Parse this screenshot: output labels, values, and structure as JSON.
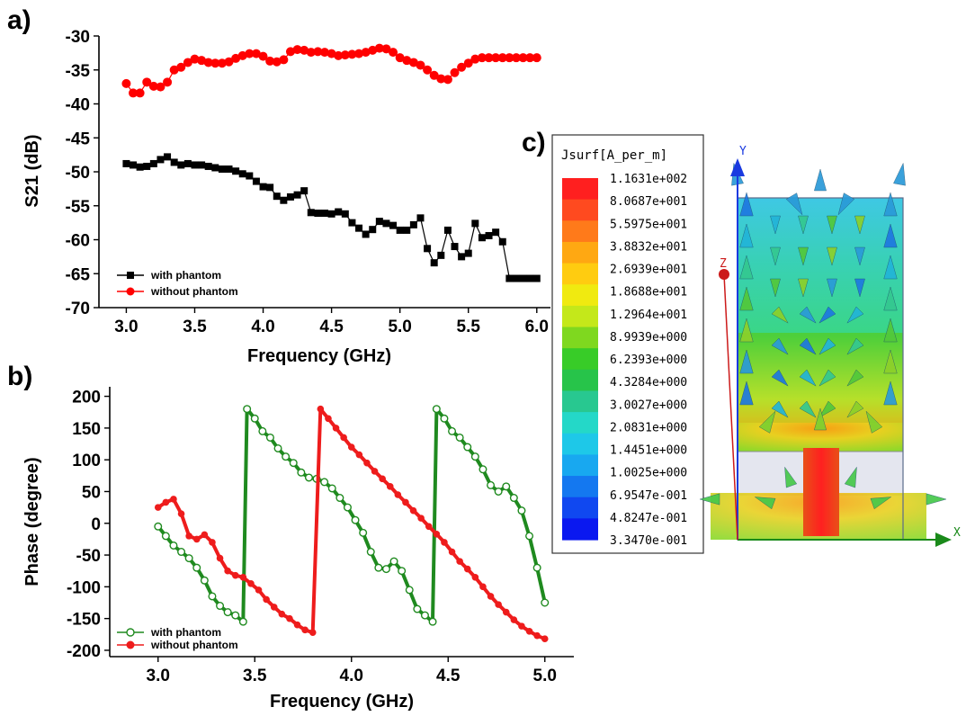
{
  "chart_data": [
    {
      "panel": "a)",
      "type": "line",
      "xlabel": "Frequency (GHz)",
      "ylabel": "S21 (dB)",
      "xlim": [
        2.8,
        6.1
      ],
      "ylim": [
        -70,
        -30
      ],
      "xticks": [
        3.0,
        3.5,
        4.0,
        4.5,
        5.0,
        5.5,
        6.0
      ],
      "xtick_labels": [
        "3.0",
        "3.5",
        "4.0",
        "4.5",
        "5.0",
        "5.5",
        "6.0"
      ],
      "yticks": [
        -70,
        -65,
        -60,
        -55,
        -50,
        -45,
        -40,
        -35,
        -30
      ],
      "ytick_labels": [
        "-70",
        "-65",
        "-60",
        "-55",
        "-50",
        "-45",
        "-40",
        "-35",
        "-30"
      ],
      "legend_position": "bottom-left",
      "series": [
        {
          "name": "with phantom",
          "color": "#000000",
          "marker": "square",
          "x": [
            3.0,
            3.05,
            3.1,
            3.15,
            3.2,
            3.25,
            3.3,
            3.35,
            3.4,
            3.45,
            3.5,
            3.55,
            3.6,
            3.65,
            3.7,
            3.75,
            3.8,
            3.85,
            3.9,
            3.95,
            4.0,
            4.05,
            4.1,
            4.15,
            4.2,
            4.25,
            4.3,
            4.35,
            4.4,
            4.45,
            4.5,
            4.55,
            4.6,
            4.65,
            4.7,
            4.75,
            4.8,
            4.85,
            4.9,
            4.95,
            5.0,
            5.05,
            5.1,
            5.15,
            5.2,
            5.25,
            5.3,
            5.35,
            5.4,
            5.45,
            5.5,
            5.55,
            5.6,
            5.65,
            5.7,
            5.75,
            5.8,
            5.85,
            5.9,
            5.95,
            6.0
          ],
          "y": [
            -48.8,
            -49.0,
            -49.3,
            -49.2,
            -48.8,
            -48.2,
            -47.8,
            -48.6,
            -49.0,
            -48.8,
            -49.0,
            -49.0,
            -49.2,
            -49.4,
            -49.6,
            -49.6,
            -49.9,
            -50.3,
            -50.6,
            -51.4,
            -52.2,
            -52.3,
            -53.6,
            -54.2,
            -53.7,
            -53.4,
            -52.8,
            -56.0,
            -56.1,
            -56.1,
            -56.2,
            -55.9,
            -56.2,
            -57.5,
            -58.3,
            -59.2,
            -58.5,
            -57.3,
            -57.6,
            -57.9,
            -58.6,
            -58.6,
            -57.8,
            -56.8,
            -61.3,
            -63.4,
            -62.3,
            -58.6,
            -61.0,
            -62.5,
            -62.0,
            -57.6,
            -59.7,
            -59.4,
            -58.9,
            -60.3,
            -65.7,
            -65.7,
            -65.7,
            -65.7,
            -65.7
          ]
        },
        {
          "name": "without phantom",
          "color": "#ff0000",
          "marker": "circle",
          "x": [
            3.0,
            3.05,
            3.1,
            3.15,
            3.2,
            3.25,
            3.3,
            3.35,
            3.4,
            3.45,
            3.5,
            3.55,
            3.6,
            3.65,
            3.7,
            3.75,
            3.8,
            3.85,
            3.9,
            3.95,
            4.0,
            4.05,
            4.1,
            4.15,
            4.2,
            4.25,
            4.3,
            4.35,
            4.4,
            4.45,
            4.5,
            4.55,
            4.6,
            4.65,
            4.7,
            4.75,
            4.8,
            4.85,
            4.9,
            4.95,
            5.0,
            5.05,
            5.1,
            5.15,
            5.2,
            5.25,
            5.3,
            5.35,
            5.4,
            5.45,
            5.5,
            5.55,
            5.6,
            5.65,
            5.7,
            5.75,
            5.8,
            5.85,
            5.9,
            5.95,
            6.0
          ],
          "y": [
            -37.0,
            -38.4,
            -38.4,
            -36.8,
            -37.4,
            -37.5,
            -36.8,
            -35.0,
            -34.6,
            -33.9,
            -33.4,
            -33.6,
            -33.9,
            -34.0,
            -34.0,
            -33.8,
            -33.3,
            -32.9,
            -32.6,
            -32.6,
            -33.0,
            -33.7,
            -33.8,
            -33.5,
            -32.3,
            -32.0,
            -32.1,
            -32.4,
            -32.3,
            -32.4,
            -32.6,
            -32.9,
            -32.8,
            -32.7,
            -32.6,
            -32.4,
            -32.1,
            -31.8,
            -31.9,
            -32.4,
            -33.2,
            -33.6,
            -33.9,
            -34.3,
            -35.0,
            -35.8,
            -36.3,
            -36.4,
            -35.4,
            -34.6,
            -34.0,
            -33.4,
            -33.2,
            -33.2,
            -33.2,
            -33.2,
            -33.2,
            -33.2,
            -33.2,
            -33.2,
            -33.2
          ]
        }
      ]
    },
    {
      "panel": "b)",
      "type": "line",
      "xlabel": "Frequency (GHz)",
      "ylabel": "Phase (degree)",
      "xlim": [
        2.75,
        5.15
      ],
      "ylim": [
        -210,
        215
      ],
      "xticks": [
        3.0,
        3.5,
        4.0,
        4.5,
        5.0
      ],
      "xtick_labels": [
        "3.0",
        "3.5",
        "4.0",
        "4.5",
        "5.0"
      ],
      "yticks": [
        -200,
        -150,
        -100,
        -50,
        0,
        50,
        100,
        150,
        200
      ],
      "ytick_labels": [
        "-200",
        "-150",
        "-100",
        "-50",
        "0",
        "50",
        "100",
        "150",
        "200"
      ],
      "legend_position": "bottom-left",
      "series": [
        {
          "name": "with phantom",
          "color": "#1f8a1f",
          "marker": "open-circle",
          "x": [
            3.0,
            3.04,
            3.08,
            3.12,
            3.16,
            3.2,
            3.24,
            3.28,
            3.32,
            3.36,
            3.4,
            3.44,
            3.46,
            3.5,
            3.54,
            3.58,
            3.62,
            3.66,
            3.7,
            3.74,
            3.78,
            3.82,
            3.86,
            3.9,
            3.94,
            3.98,
            4.02,
            4.06,
            4.1,
            4.14,
            4.18,
            4.22,
            4.26,
            4.3,
            4.34,
            4.38,
            4.42,
            4.44,
            4.48,
            4.52,
            4.56,
            4.6,
            4.64,
            4.68,
            4.72,
            4.76,
            4.8,
            4.84,
            4.88,
            4.92,
            4.96,
            5.0
          ],
          "y": [
            -5,
            -20,
            -35,
            -45,
            -55,
            -70,
            -90,
            -115,
            -130,
            -140,
            -145,
            -155,
            180,
            165,
            145,
            135,
            118,
            105,
            95,
            80,
            72,
            70,
            65,
            55,
            40,
            25,
            5,
            -15,
            -45,
            -70,
            -72,
            -60,
            -75,
            -105,
            -135,
            -145,
            -155,
            180,
            165,
            145,
            135,
            120,
            105,
            85,
            60,
            50,
            58,
            40,
            20,
            -20,
            -70,
            -125
          ]
        },
        {
          "name": "without phantom",
          "color": "#ee1c1c",
          "marker": "filled-circle",
          "x": [
            3.0,
            3.04,
            3.08,
            3.12,
            3.16,
            3.2,
            3.24,
            3.28,
            3.32,
            3.36,
            3.4,
            3.44,
            3.48,
            3.52,
            3.56,
            3.6,
            3.64,
            3.68,
            3.72,
            3.76,
            3.8,
            3.84,
            3.88,
            3.92,
            3.96,
            4.0,
            4.04,
            4.08,
            4.12,
            4.16,
            4.2,
            4.24,
            4.28,
            4.32,
            4.36,
            4.4,
            4.44,
            4.48,
            4.52,
            4.56,
            4.6,
            4.64,
            4.68,
            4.72,
            4.76,
            4.8,
            4.84,
            4.88,
            4.92,
            4.96,
            5.0
          ],
          "y": [
            25,
            33,
            38,
            15,
            -20,
            -25,
            -18,
            -30,
            -55,
            -75,
            -82,
            -85,
            -95,
            -105,
            -120,
            -132,
            -143,
            -150,
            -160,
            -168,
            -172,
            180,
            165,
            150,
            135,
            120,
            108,
            95,
            82,
            70,
            58,
            45,
            33,
            20,
            8,
            -5,
            -17,
            -30,
            -45,
            -60,
            -72,
            -85,
            -100,
            -115,
            -128,
            -140,
            -152,
            -162,
            -170,
            -177,
            -182
          ]
        }
      ]
    }
  ],
  "field_plot": {
    "panel": "c)",
    "colorbar_title": "Jsurf[A_per_m]",
    "colorbar_labels": [
      "1.1631e+002",
      "8.0687e+001",
      "5.5975e+001",
      "3.8832e+001",
      "2.6939e+001",
      "1.8688e+001",
      "1.2964e+001",
      "8.9939e+000",
      "6.2393e+000",
      "4.3284e+000",
      "3.0027e+000",
      "2.0831e+000",
      "1.4451e+000",
      "1.0025e+000",
      "6.9547e-001",
      "4.8247e-001",
      "3.3470e-001"
    ],
    "colorbar_colors": [
      "#ff1f1f",
      "#ff4a1f",
      "#ff7a1a",
      "#ffa812",
      "#ffcc10",
      "#f0ea10",
      "#c4e81a",
      "#7fd81f",
      "#38cc28",
      "#27c44a",
      "#28c890",
      "#24d8c8",
      "#1ec8e8",
      "#18a8f0",
      "#1478f0",
      "#1048f0",
      "#0a18f0"
    ],
    "axis_labels": {
      "x": "X",
      "y": "Y",
      "z": "Z"
    }
  }
}
